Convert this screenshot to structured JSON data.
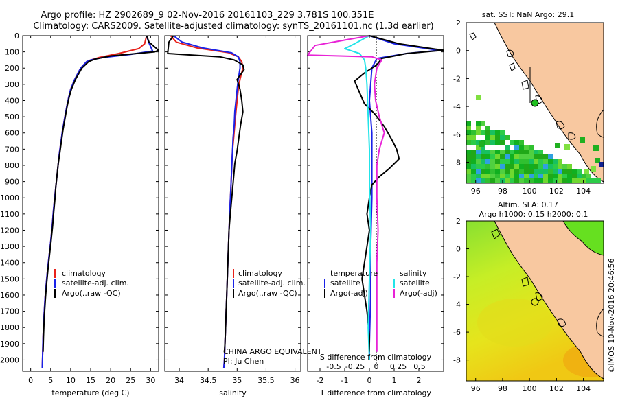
{
  "title_line1": "Argo profile: HZ 2902689_9 02-Nov-2016 20161103_229 3.781S 100.351E",
  "title_line2": "Climatology: CARS2009. Satellite-adjusted climatology: synTS_20161101.nc (1.3d earlier)",
  "depth_ticks": [
    "0",
    "100",
    "200",
    "300",
    "400",
    "500",
    "600",
    "700",
    "800",
    "900",
    "1000",
    "1100",
    "1200",
    "1300",
    "1400",
    "1500",
    "1600",
    "1700",
    "1800",
    "1900",
    "2000"
  ],
  "colors": {
    "climatology": "#e8211a",
    "satellite": "#1a22e8",
    "argo": "#000000",
    "sat_cyan": "#22e4e8",
    "argo_adj": "#e822d6",
    "land": "#f8c8a0",
    "blue_line": "#1a1aff"
  },
  "institution_stamp": "©IMOS 10-Nov-2016 20:46:56",
  "chart_data": [
    {
      "type": "line",
      "xlabel": "temperature (deg C)",
      "xlim": [
        -2,
        32
      ],
      "ylim": [
        2070,
        0
      ],
      "xticks": [
        0,
        5,
        10,
        15,
        20,
        25,
        30
      ],
      "legend": [
        "climatology",
        "satellite-adj. clim.",
        "Argo(..raw -QC)"
      ],
      "series": [
        {
          "name": "climatology",
          "x": [
            29,
            28.5,
            27,
            22,
            17,
            15,
            14,
            12.5,
            11,
            10,
            9.5,
            9,
            8.5,
            8,
            7.6,
            7.2,
            6.9,
            6.6,
            6.3,
            6,
            5.7,
            5.4,
            5,
            4.5,
            4.2,
            3.9,
            3.6,
            3.3,
            3.1,
            3,
            2.9
          ],
          "y": [
            0,
            50,
            80,
            110,
            135,
            150,
            160,
            200,
            270,
            330,
            380,
            440,
            510,
            580,
            650,
            720,
            790,
            860,
            930,
            1000,
            1080,
            1170,
            1270,
            1380,
            1450,
            1530,
            1620,
            1740,
            1860,
            1960,
            2050
          ]
        },
        {
          "name": "satellite-adj. clim.",
          "x": [
            29,
            29.5,
            30.5,
            25,
            18,
            15,
            14,
            12.5,
            11,
            10,
            9.5,
            9,
            8.5,
            8,
            7.6,
            7.2,
            6.9,
            6.6,
            6.3,
            6,
            5.7,
            5.4,
            5,
            4.5,
            4.2,
            3.9,
            3.6,
            3.3,
            3.1,
            3,
            2.9
          ],
          "y": [
            0,
            40,
            95,
            115,
            135,
            150,
            160,
            200,
            270,
            330,
            380,
            440,
            510,
            580,
            650,
            720,
            790,
            860,
            930,
            1000,
            1080,
            1170,
            1270,
            1380,
            1450,
            1530,
            1620,
            1740,
            1860,
            1960,
            2050
          ]
        },
        {
          "name": "Argo(..raw -QC)",
          "x": [
            29,
            29.6,
            32,
            31,
            20,
            16,
            14.5,
            12.8,
            11.2,
            10.2,
            9.6,
            9.1,
            8.6,
            8.1,
            7.7,
            7.3,
            6.9,
            6.6,
            6.3,
            6.1,
            5.8,
            5.5,
            5.1,
            4.6,
            4.3,
            4,
            3.7,
            3.4,
            3.2,
            3.1
          ],
          "y": [
            0,
            40,
            90,
            100,
            125,
            145,
            160,
            200,
            270,
            330,
            380,
            440,
            510,
            580,
            650,
            720,
            790,
            860,
            930,
            1000,
            1080,
            1170,
            1270,
            1380,
            1450,
            1530,
            1620,
            1740,
            1860,
            1950
          ]
        }
      ]
    },
    {
      "type": "line",
      "xlabel": "salinity",
      "xlim": [
        33.75,
        36.1
      ],
      "ylim": [
        2070,
        0
      ],
      "xticks": [
        34,
        34.5,
        35,
        35.5,
        36
      ],
      "legend": [
        "climatology",
        "satellite-adj. clim.",
        "Argo(..raw -QC)"
      ],
      "annotation_line1": "CHINA ARGO EQUIVALENT",
      "annotation_line2": "PI: Ju Chen",
      "series": [
        {
          "name": "climatology",
          "x": [
            33.85,
            33.95,
            34.3,
            34.85,
            35.02,
            35.08,
            35.1,
            35.05,
            35.02,
            35.0,
            34.98,
            34.96,
            34.94,
            34.92,
            34.91,
            34.9,
            34.89,
            34.88,
            34.87,
            34.86,
            34.85,
            34.84,
            34.83,
            34.82,
            34.81,
            34.8,
            34.79,
            34.78,
            34.77
          ],
          "y": [
            0,
            40,
            75,
            105,
            130,
            160,
            200,
            270,
            330,
            400,
            470,
            550,
            630,
            710,
            790,
            870,
            950,
            1030,
            1110,
            1200,
            1300,
            1400,
            1500,
            1600,
            1700,
            1800,
            1900,
            2000,
            2050
          ]
        },
        {
          "name": "satellite-adj. clim.",
          "x": [
            33.9,
            34.05,
            34.4,
            34.9,
            35.02,
            35.05,
            35.05,
            35.02,
            35.0,
            34.98,
            34.96,
            34.95,
            34.93,
            34.92,
            34.91,
            34.9,
            34.89,
            34.88,
            34.87,
            34.86,
            34.85,
            34.84,
            34.83,
            34.82,
            34.81,
            34.8,
            34.79,
            34.78,
            34.77
          ],
          "y": [
            0,
            40,
            75,
            105,
            130,
            160,
            200,
            270,
            330,
            400,
            470,
            550,
            630,
            710,
            790,
            870,
            950,
            1030,
            1110,
            1200,
            1300,
            1400,
            1500,
            1600,
            1700,
            1800,
            1900,
            2000,
            2050
          ]
        },
        {
          "name": "Argo(..raw -QC)",
          "x": [
            33.9,
            33.82,
            33.8,
            34.7,
            34.95,
            35.1,
            35.12,
            35.0,
            35.05,
            35.08,
            35.1,
            35.06,
            35.03,
            35.0,
            34.96,
            34.94,
            34.92,
            34.9,
            34.88,
            34.86,
            34.85,
            34.84,
            34.83,
            34.82,
            34.81,
            34.8,
            34.79,
            34.78
          ],
          "y": [
            0,
            40,
            110,
            130,
            150,
            180,
            210,
            270,
            330,
            400,
            470,
            550,
            630,
            710,
            790,
            870,
            950,
            1030,
            1110,
            1200,
            1300,
            1400,
            1500,
            1600,
            1700,
            1800,
            1900,
            1950
          ]
        }
      ]
    },
    {
      "type": "line",
      "title": "S difference from climatology",
      "xlabel": "T difference from climatology",
      "xlim": [
        -2.5,
        3
      ],
      "ylim": [
        2070,
        0
      ],
      "xticks": [
        -2,
        -1,
        0,
        1,
        2
      ],
      "top_xticks": [
        "-0.5",
        "-0.25",
        "0",
        "0.25",
        "0.5"
      ],
      "legend_temperature_header": "temperature",
      "legend_salinity_header": "salinity",
      "legend": [
        "satellite",
        "Argo(-adj)",
        "satellite",
        "Argo(-adj)"
      ],
      "series": [
        {
          "name": "satellite",
          "group": "temperature",
          "color": "#1a22e8",
          "x": [
            0,
            1,
            2.8,
            1.5,
            0.3,
            0.1,
            0.05,
            0.0,
            0.05,
            0.1,
            0.1,
            0.1,
            0.05,
            0.05,
            0.0,
            0.0
          ],
          "y": [
            0,
            50,
            90,
            110,
            140,
            200,
            300,
            400,
            500,
            600,
            800,
            1000,
            1300,
            1600,
            1900,
            2000
          ]
        },
        {
          "name": "Argo(-adj)",
          "group": "temperature",
          "color": "#000000",
          "x": [
            0,
            1.2,
            3,
            1.5,
            0.5,
            0.3,
            -0.2,
            -0.6,
            -0.4,
            -0.2,
            0.2,
            0.6,
            0.9,
            1.1,
            1.2,
            0.8,
            0.4,
            0.1,
            0.0,
            -0.1,
            0.0,
            -0.1,
            -0.2,
            -0.3,
            -0.2,
            -0.1,
            0.0,
            0.0
          ],
          "y": [
            0,
            50,
            90,
            110,
            140,
            180,
            230,
            280,
            350,
            420,
            480,
            560,
            640,
            700,
            760,
            820,
            870,
            920,
            1000,
            1100,
            1200,
            1300,
            1400,
            1500,
            1600,
            1700,
            1850,
            1950
          ]
        },
        {
          "name": "satellite",
          "group": "salinity",
          "color": "#22e4e8",
          "x": [
            0,
            -0.6,
            -1.0,
            -0.4,
            -0.2,
            -0.15,
            -0.1,
            -0.05,
            0.0,
            0.0,
            0.05,
            0.0,
            -0.05,
            0.0
          ],
          "y": [
            0,
            50,
            80,
            110,
            150,
            200,
            300,
            500,
            700,
            900,
            1200,
            1500,
            1800,
            2000
          ]
        },
        {
          "name": "Argo(-adj)",
          "group": "salinity",
          "color": "#e822d6",
          "x": [
            0,
            -2.2,
            -2.5,
            0.1,
            0.5,
            0.3,
            0.2,
            0.25,
            0.4,
            0.6,
            0.4,
            0.3,
            0.3,
            0.35,
            0.3,
            0.3,
            0.3,
            0.3
          ],
          "y": [
            0,
            60,
            120,
            130,
            150,
            200,
            300,
            400,
            500,
            600,
            700,
            800,
            1000,
            1200,
            1400,
            1600,
            1800,
            1950
          ]
        }
      ]
    },
    {
      "type": "heatmap",
      "title": "sat. SST: NaN Argo: 29.1",
      "xlim": [
        95.3,
        105.5
      ],
      "ylim": [
        -9.5,
        2
      ],
      "xticks": [
        96,
        98,
        100,
        102,
        104
      ],
      "yticks": [
        -8,
        -6,
        -4,
        -2,
        0,
        2
      ],
      "marker": {
        "lon": 100.351,
        "lat": -3.781
      }
    },
    {
      "type": "heatmap",
      "title": "Altim. SLA: 0.17",
      "subtitle": "Argo h1000: 0.15 h2000: 0.1",
      "xlim": [
        95.3,
        105.5
      ],
      "ylim": [
        -9.5,
        2
      ],
      "xticks": [
        96,
        98,
        100,
        102,
        104
      ],
      "yticks": [
        -8,
        -6,
        -4,
        -2,
        0,
        2
      ],
      "marker": {
        "lon": 100.351,
        "lat": -3.781
      }
    }
  ]
}
